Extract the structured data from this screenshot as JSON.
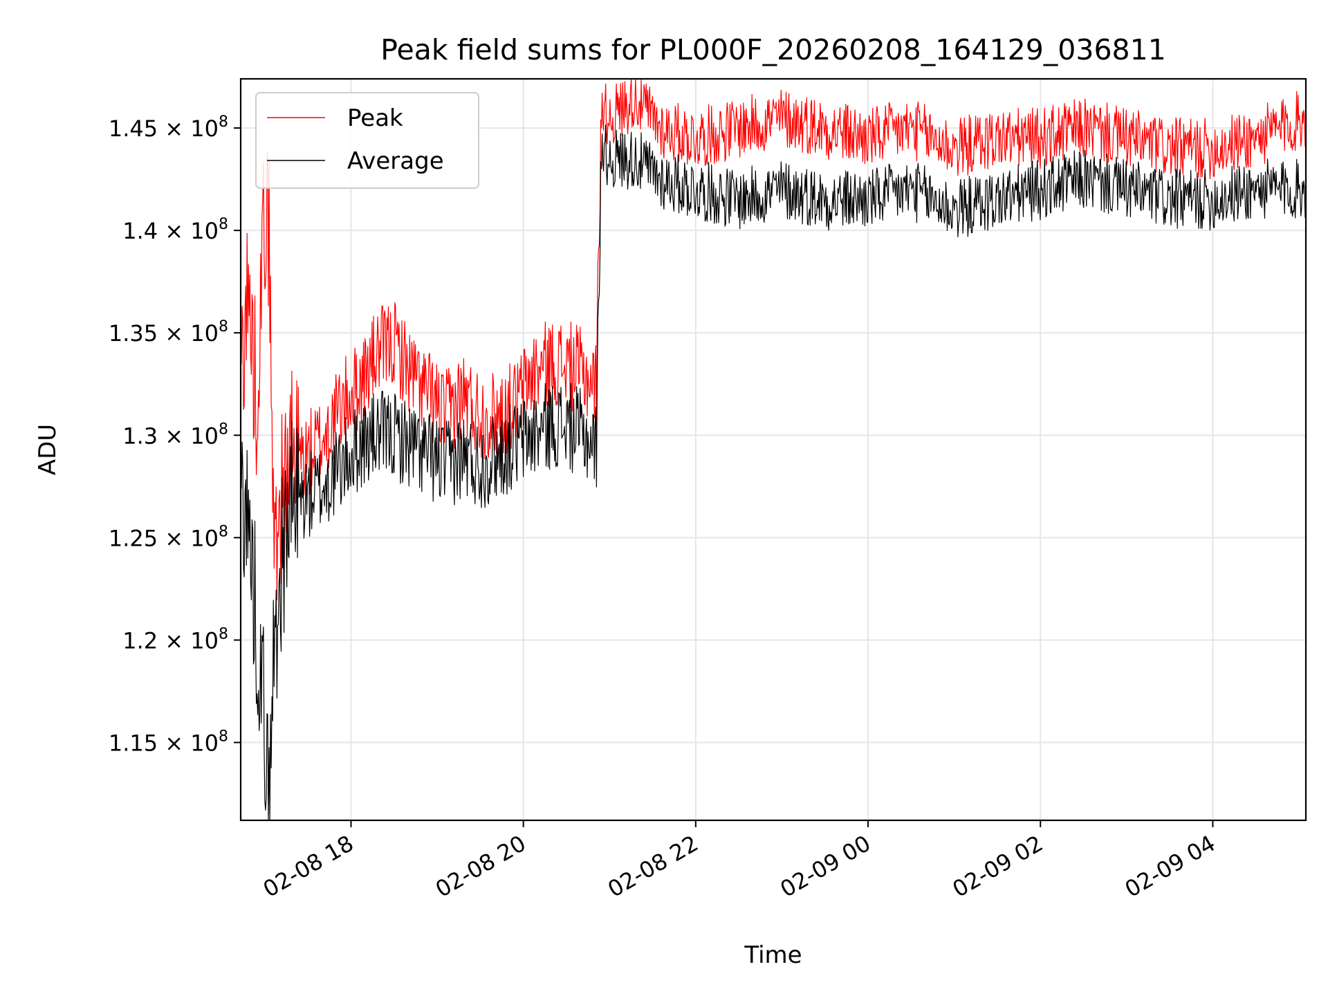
{
  "chart_data": {
    "type": "line",
    "title": "Peak field sums for PL000F_20260208_164129_036811",
    "xlabel": "Time",
    "ylabel": "ADU",
    "x_unit": "hours since 2026-02-08 00:00",
    "xlim": [
      16.72,
      5.08
    ],
    "xlim_note": "x range spans 16.72 h on 02-08 to 05.08 h on 02-09 (i.e. 16.72 to 29.08 hours)",
    "xlim_hours": [
      16.72,
      29.08
    ],
    "ylim": [
      111200000,
      147400000
    ],
    "x_ticks": [
      {
        "hours": 18,
        "label": "02-08 18"
      },
      {
        "hours": 20,
        "label": "02-08 20"
      },
      {
        "hours": 22,
        "label": "02-08 22"
      },
      {
        "hours": 24,
        "label": "02-09 00"
      },
      {
        "hours": 26,
        "label": "02-09 02"
      },
      {
        "hours": 28,
        "label": "02-09 04"
      }
    ],
    "y_ticks": [
      {
        "value": 115000000,
        "mantissa": "1.15",
        "exp": "8"
      },
      {
        "value": 120000000,
        "mantissa": "1.2",
        "exp": "8"
      },
      {
        "value": 125000000,
        "mantissa": "1.25",
        "exp": "8"
      },
      {
        "value": 130000000,
        "mantissa": "1.3",
        "exp": "8"
      },
      {
        "value": 135000000,
        "mantissa": "1.35",
        "exp": "8"
      },
      {
        "value": 140000000,
        "mantissa": "1.4",
        "exp": "8"
      },
      {
        "value": 145000000,
        "mantissa": "1.45",
        "exp": "8"
      }
    ],
    "grid": true,
    "legend_position": "top-left",
    "series": [
      {
        "name": "Peak",
        "color": "#ff0000",
        "x_hours": [
          16.72,
          16.8,
          16.9,
          17.0,
          17.05,
          17.1,
          17.2,
          17.3,
          17.5,
          17.7,
          17.9,
          18.1,
          18.3,
          18.5,
          18.7,
          18.9,
          19.1,
          19.3,
          19.5,
          19.7,
          19.9,
          20.1,
          20.3,
          20.5,
          20.7,
          20.85,
          20.9,
          21.0,
          21.3,
          21.6,
          22.0,
          22.5,
          23.0,
          23.5,
          24.0,
          24.5,
          25.0,
          25.5,
          26.0,
          26.5,
          27.0,
          27.5,
          28.0,
          28.5,
          29.08
        ],
        "values": [
          133500000,
          137000000,
          132000000,
          141000000,
          140000000,
          125000000,
          127000000,
          129000000,
          129000000,
          130000000,
          131500000,
          132500000,
          134000000,
          134500000,
          133000000,
          132000000,
          131000000,
          132000000,
          131000000,
          131000000,
          131500000,
          133000000,
          133500000,
          133500000,
          133000000,
          132500000,
          146000000,
          145500000,
          146500000,
          145000000,
          144500000,
          145000000,
          145500000,
          145000000,
          144500000,
          145000000,
          144000000,
          144500000,
          144500000,
          145000000,
          144500000,
          144000000,
          144000000,
          144500000,
          145500000
        ]
      },
      {
        "name": "Average",
        "color": "#000000",
        "x_hours": [
          16.72,
          16.8,
          16.9,
          17.0,
          17.05,
          17.1,
          17.2,
          17.3,
          17.5,
          17.7,
          17.9,
          18.1,
          18.3,
          18.5,
          18.7,
          18.9,
          19.1,
          19.3,
          19.5,
          19.7,
          19.9,
          20.1,
          20.3,
          20.5,
          20.7,
          20.85,
          20.9,
          21.0,
          21.3,
          21.6,
          22.0,
          22.5,
          23.0,
          23.5,
          24.0,
          24.5,
          25.0,
          25.5,
          26.0,
          26.5,
          27.0,
          27.5,
          28.0,
          28.5,
          29.08
        ],
        "values": [
          128000000,
          126000000,
          121000000,
          116000000,
          111300000,
          119000000,
          124000000,
          126500000,
          127000000,
          127500000,
          128500000,
          129500000,
          130000000,
          130000000,
          129500000,
          129000000,
          128500000,
          129000000,
          128500000,
          129000000,
          129500000,
          130000000,
          130500000,
          130500000,
          130000000,
          129500000,
          144000000,
          143500000,
          143500000,
          142500000,
          142000000,
          141500000,
          142000000,
          141500000,
          141500000,
          142000000,
          141000000,
          141500000,
          142000000,
          142500000,
          142000000,
          141500000,
          141500000,
          142000000,
          142000000
        ]
      }
    ]
  }
}
